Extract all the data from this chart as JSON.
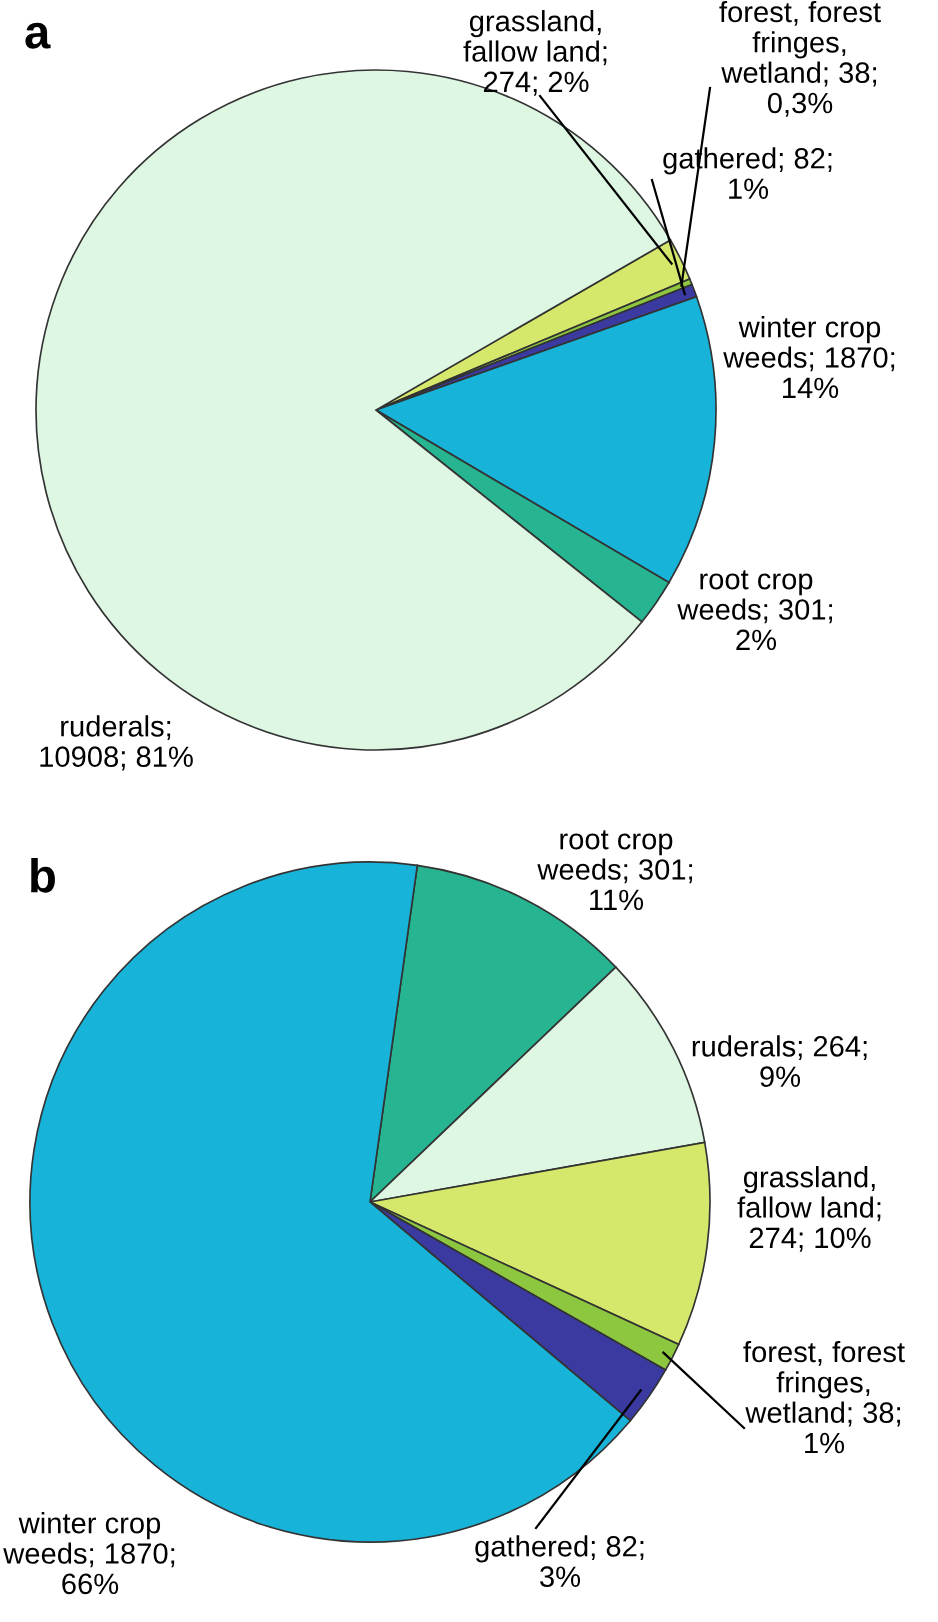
{
  "chart_data": [
    {
      "type": "pie",
      "title": "a",
      "categories": [
        "grassland,\nfallow land;\n274; 2%",
        "forest, forest\nfringes,\nwetland; 38;\n0,3%",
        "gathered; 82;\n1%",
        "winter crop\nweeds; 1870;\n14%",
        "root crop\nweeds; 301;\n2%",
        "ruderals;\n10908; 81%"
      ],
      "values": [
        274,
        38,
        82,
        1870,
        301,
        10908
      ],
      "colors": [
        "#d6e86b",
        "#8dc63f",
        "#3a3aa0",
        "#17b3d9",
        "#26b491",
        "#ddf7e3"
      ]
    },
    {
      "type": "pie",
      "title": "b",
      "categories": [
        "root crop\nweeds; 301;\n11%",
        "ruderals; 264;\n9%",
        "grassland,\nfallow land;\n274; 10%",
        "forest, forest\nfringes,\nwetland; 38;\n1%",
        "gathered; 82;\n3%",
        "winter crop\nweeds; 1870;\n66%"
      ],
      "values": [
        301,
        264,
        274,
        38,
        82,
        1870
      ],
      "colors": [
        "#26b491",
        "#ddf7e3",
        "#d6e86b",
        "#8dc63f",
        "#3a3aa0",
        "#17b3d9"
      ]
    }
  ]
}
